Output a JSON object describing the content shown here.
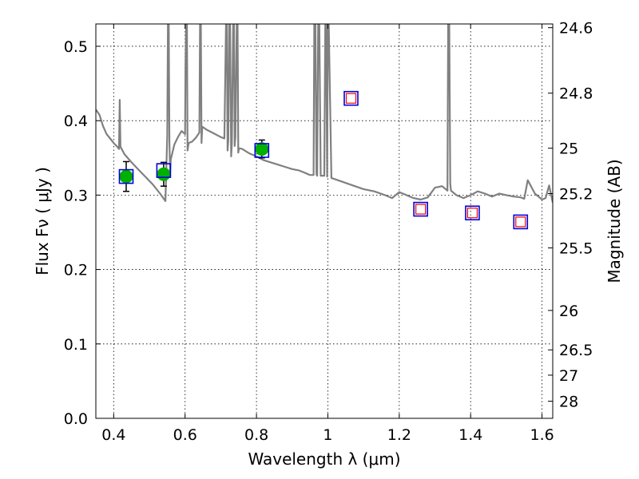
{
  "chart_data": {
    "type": "scatter",
    "xlabel": "Wavelength  λ (μm)",
    "ylabel": "Flux  Fν  ( μJy )",
    "y2label": "Magnitude (AB)",
    "xlim": [
      0.35,
      1.63
    ],
    "ylim": [
      0.0,
      0.53
    ],
    "xticks": [
      0.4,
      0.6,
      0.8,
      1.0,
      1.2,
      1.4,
      1.6
    ],
    "xtick_labels": [
      "0.4",
      "0.6",
      "0.8",
      "1",
      "1.2",
      "1.4",
      "1.6"
    ],
    "yticks": [
      0.0,
      0.1,
      0.2,
      0.3,
      0.4,
      0.5
    ],
    "ytick_labels": [
      "0.0",
      "0.1",
      "0.2",
      "0.3",
      "0.4",
      "0.5"
    ],
    "y2ticks": [
      {
        "flux": 0.525,
        "label": "24.6"
      },
      {
        "flux": 0.437,
        "label": "24.8"
      },
      {
        "flux": 0.363,
        "label": "25"
      },
      {
        "flux": 0.302,
        "label": "25.2"
      },
      {
        "flux": 0.229,
        "label": "25.5"
      },
      {
        "flux": 0.145,
        "label": "26"
      },
      {
        "flux": 0.092,
        "label": "26.5"
      },
      {
        "flux": 0.058,
        "label": "27"
      },
      {
        "flux": 0.023,
        "label": "28"
      }
    ],
    "grid": true,
    "colors": {
      "model": "#808080",
      "detection": "#00b000",
      "box": "#0000dd",
      "upper_limit": "#ff0000",
      "errorbar": "#000000"
    },
    "series": [
      {
        "kind": "line",
        "x": [
          0.35,
          0.36,
          0.37,
          0.38,
          0.39,
          0.4,
          0.41,
          0.415,
          0.417,
          0.419,
          0.43,
          0.45,
          0.47,
          0.49,
          0.51,
          0.53,
          0.545,
          0.55,
          0.552,
          0.554,
          0.556,
          0.558,
          0.56,
          0.57,
          0.58,
          0.59,
          0.6,
          0.601,
          0.603,
          0.605,
          0.607,
          0.61,
          0.62,
          0.63,
          0.64,
          0.642,
          0.644,
          0.646,
          0.648,
          0.66,
          0.68,
          0.7,
          0.71,
          0.715,
          0.717,
          0.719,
          0.721,
          0.724,
          0.726,
          0.729,
          0.731,
          0.735,
          0.737,
          0.739,
          0.741,
          0.745,
          0.747,
          0.749,
          0.751,
          0.76,
          0.78,
          0.8,
          0.82,
          0.84,
          0.86,
          0.88,
          0.9,
          0.92,
          0.94,
          0.95,
          0.96,
          0.962,
          0.965,
          0.968,
          0.97,
          0.973,
          0.976,
          0.98,
          0.99,
          0.993,
          0.995,
          0.998,
          1.0,
          1.002,
          1.01,
          1.04,
          1.07,
          1.1,
          1.13,
          1.16,
          1.18,
          1.2,
          1.22,
          1.24,
          1.26,
          1.28,
          1.3,
          1.32,
          1.335,
          1.337,
          1.34,
          1.343,
          1.345,
          1.36,
          1.38,
          1.4,
          1.42,
          1.44,
          1.46,
          1.48,
          1.5,
          1.52,
          1.54,
          1.55,
          1.56,
          1.58,
          1.6,
          1.61,
          1.62,
          1.63
        ],
        "y": [
          0.415,
          0.408,
          0.393,
          0.382,
          0.376,
          0.37,
          0.365,
          0.362,
          0.428,
          0.365,
          0.355,
          0.344,
          0.334,
          0.324,
          0.314,
          0.302,
          0.292,
          0.38,
          0.54,
          0.54,
          0.37,
          0.33,
          0.348,
          0.368,
          0.378,
          0.386,
          0.382,
          0.47,
          0.54,
          0.54,
          0.36,
          0.37,
          0.372,
          0.377,
          0.384,
          0.54,
          0.54,
          0.37,
          0.392,
          0.388,
          0.383,
          0.378,
          0.376,
          0.54,
          0.54,
          0.36,
          0.373,
          0.54,
          0.54,
          0.352,
          0.37,
          0.54,
          0.54,
          0.366,
          0.378,
          0.54,
          0.54,
          0.357,
          0.363,
          0.362,
          0.356,
          0.352,
          0.347,
          0.344,
          0.341,
          0.338,
          0.335,
          0.333,
          0.329,
          0.327,
          0.327,
          0.54,
          0.54,
          0.328,
          0.326,
          0.54,
          0.54,
          0.326,
          0.326,
          0.54,
          0.54,
          0.325,
          0.54,
          0.54,
          0.323,
          0.318,
          0.313,
          0.308,
          0.305,
          0.3,
          0.296,
          0.304,
          0.3,
          0.296,
          0.294,
          0.297,
          0.31,
          0.312,
          0.306,
          0.54,
          0.54,
          0.315,
          0.306,
          0.3,
          0.296,
          0.3,
          0.305,
          0.302,
          0.298,
          0.302,
          0.3,
          0.298,
          0.297,
          0.295,
          0.32,
          0.302,
          0.294,
          0.296,
          0.313,
          0.29
        ]
      },
      {
        "kind": "points",
        "name": "",
        "x": [
          0.435,
          0.54,
          0.815
        ],
        "y": [
          0.325,
          0.328,
          0.362
        ],
        "yerr": [
          0.02,
          0.016,
          0.012
        ]
      },
      {
        "kind": "model_boxes",
        "x": [
          0.435,
          0.54,
          0.815,
          1.065,
          1.26,
          1.405,
          1.54
        ],
        "y": [
          0.325,
          0.333,
          0.36,
          0.43,
          0.281,
          0.276,
          0.264
        ]
      },
      {
        "kind": "upper_limits",
        "x": [
          1.065,
          1.26,
          1.405,
          1.54
        ],
        "y": [
          0.43,
          0.281,
          0.276,
          0.264
        ]
      }
    ]
  }
}
